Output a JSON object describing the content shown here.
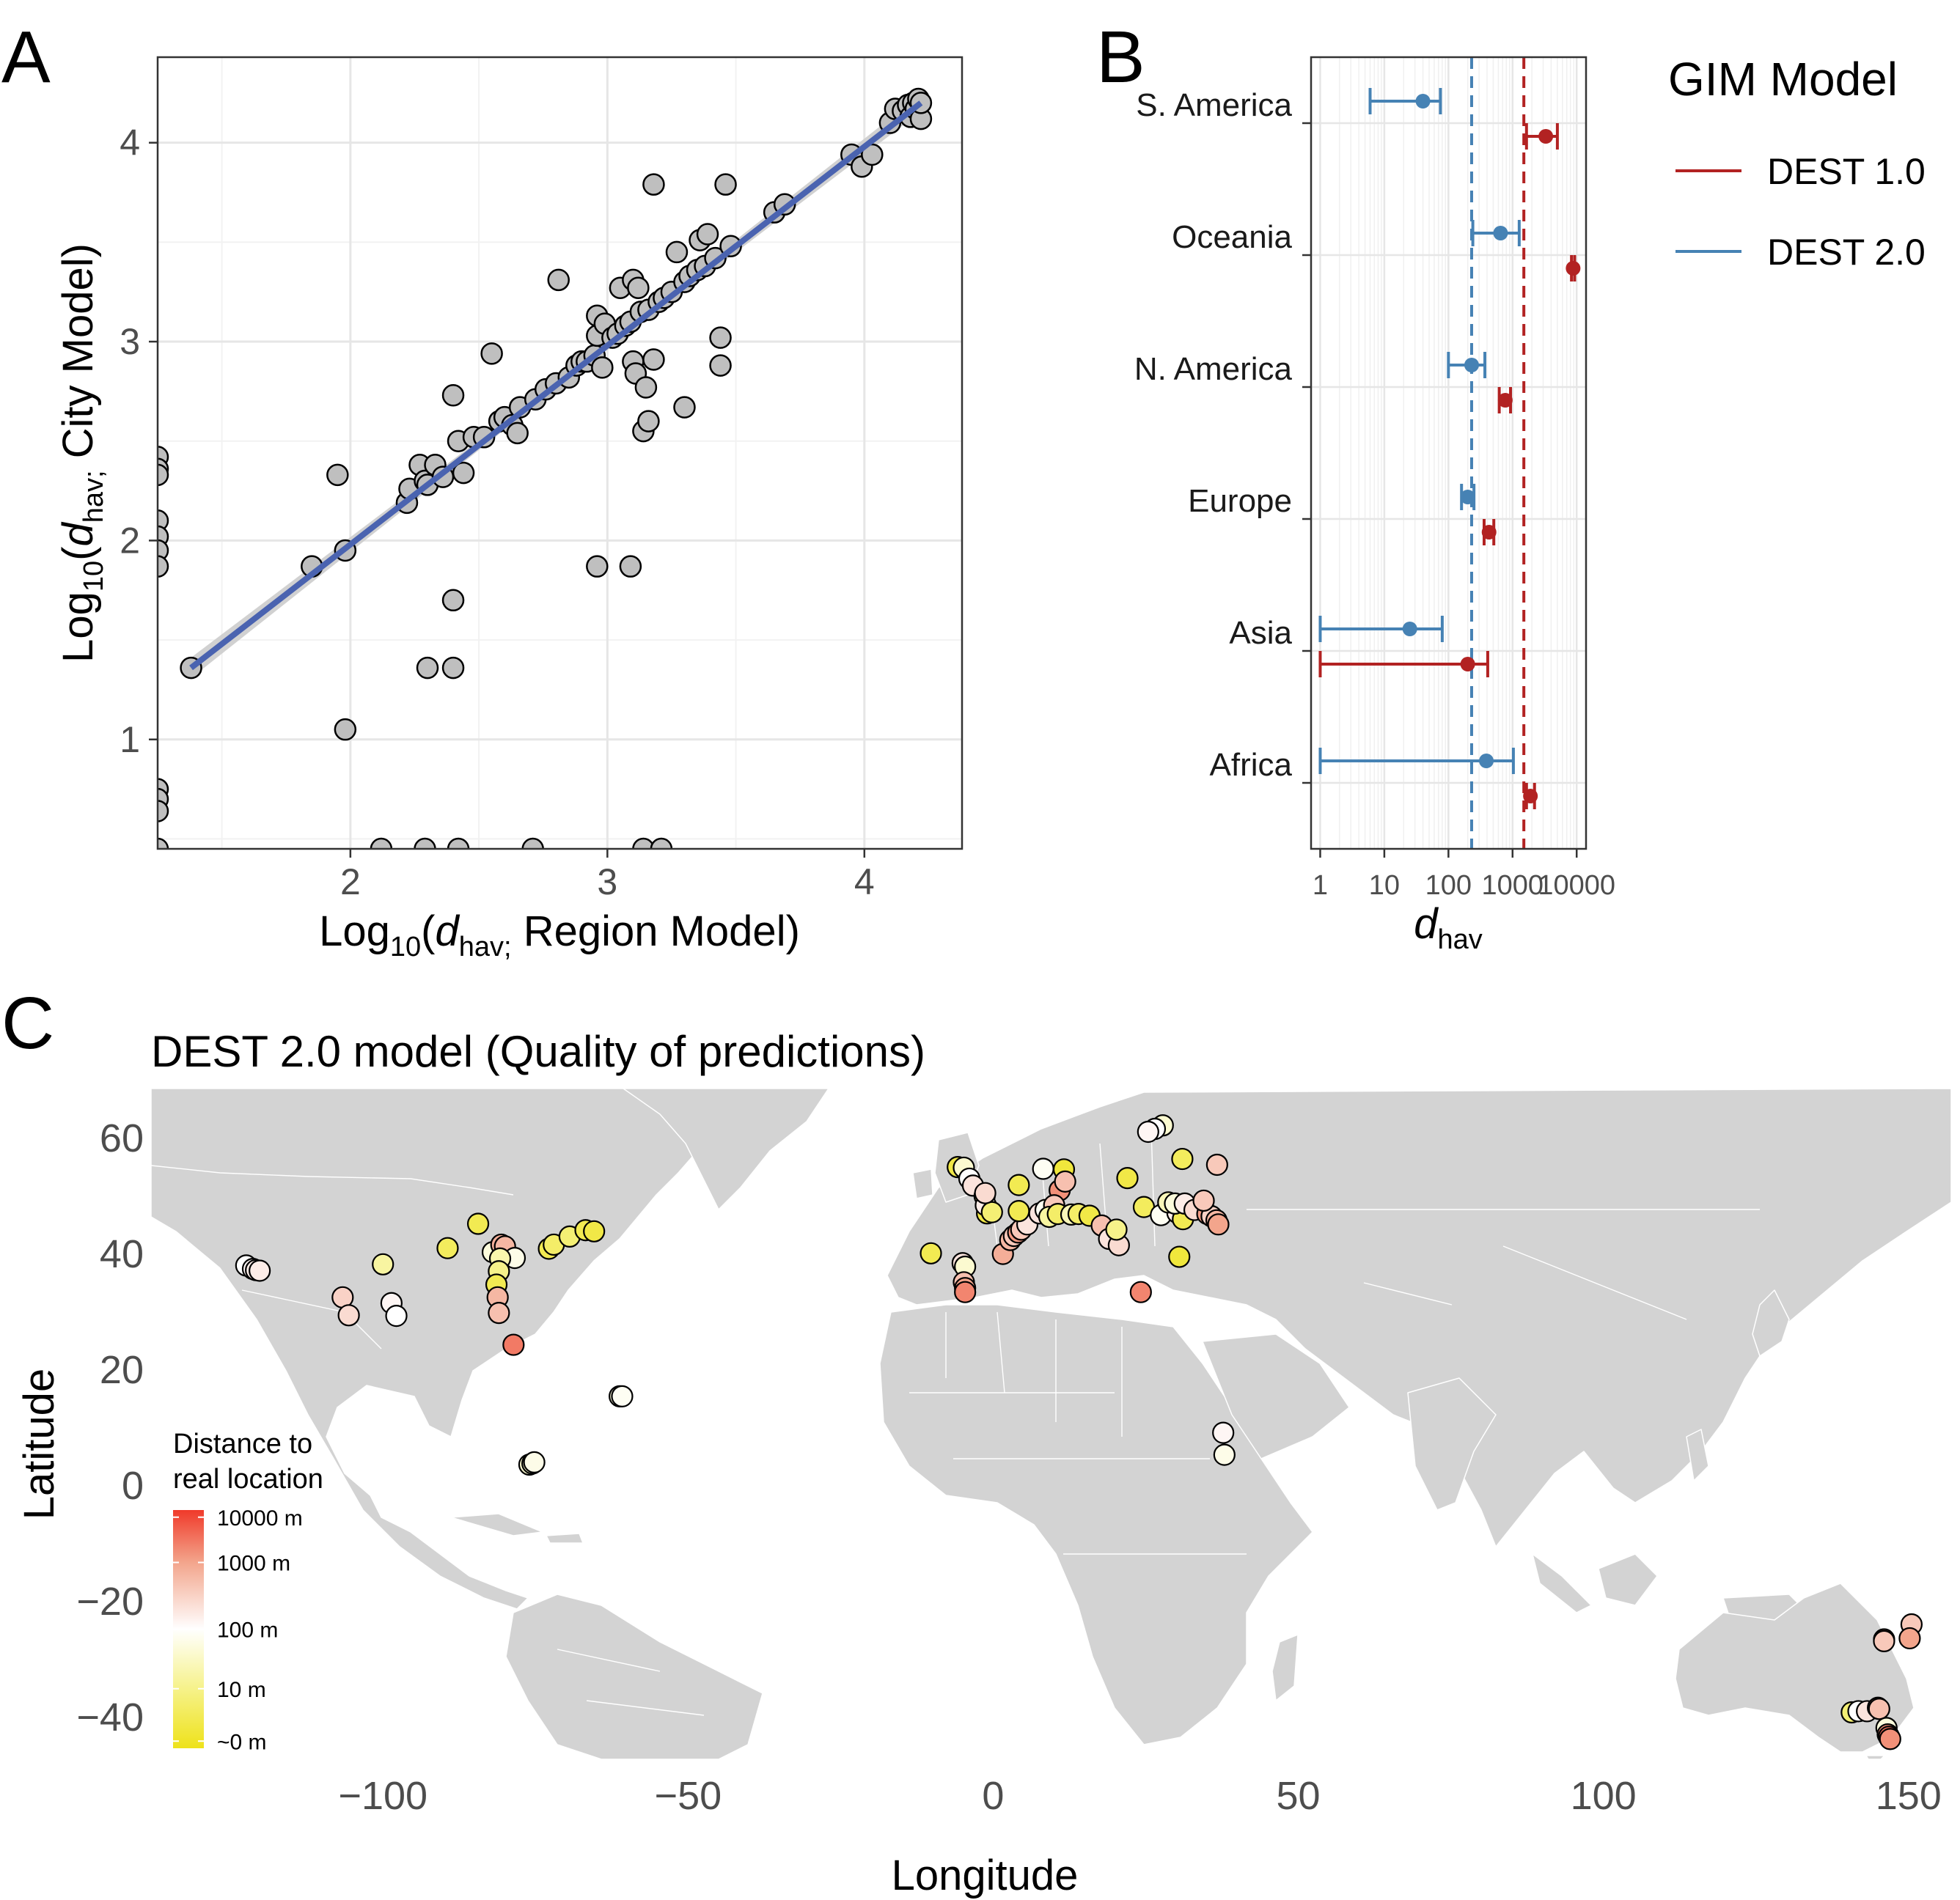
{
  "panels": {
    "A": {
      "letter": "A"
    },
    "B": {
      "letter": "B"
    },
    "C": {
      "letter": "C"
    }
  },
  "chart_data": [
    {
      "id": "A",
      "type": "scatter",
      "xlabel": {
        "prefix": "Log",
        "sub": "10",
        "open": "(",
        "var": "d",
        "varsub": "hav;",
        "rest": " Region Model)"
      },
      "ylabel": {
        "prefix": "Log",
        "sub": "10",
        "open": "(",
        "var": "d",
        "varsub": "hav;",
        "rest": " City Model)"
      },
      "xlim": [
        1.25,
        4.38
      ],
      "ylim": [
        0.45,
        4.43
      ],
      "xticks": [
        2,
        3,
        4
      ],
      "yticks": [
        1,
        2,
        3,
        4
      ],
      "grid": true,
      "colors": {
        "points": "#bfbfbf",
        "point_edge": "#000000",
        "fit_line": "#4a63b0",
        "fit_band": "#cccccc"
      },
      "fit": {
        "x": [
          1.38,
          4.22
        ],
        "y": [
          1.36,
          4.2
        ]
      },
      "points": [
        [
          1.25,
          2.42
        ],
        [
          1.25,
          2.36
        ],
        [
          1.25,
          2.33
        ],
        [
          1.25,
          2.1
        ],
        [
          1.25,
          2.02
        ],
        [
          1.25,
          1.95
        ],
        [
          1.25,
          1.87
        ],
        [
          1.25,
          0.75
        ],
        [
          1.25,
          0.7
        ],
        [
          1.25,
          0.64
        ],
        [
          1.25,
          0.45
        ],
        [
          1.38,
          1.36
        ],
        [
          1.85,
          1.87
        ],
        [
          1.95,
          2.33
        ],
        [
          1.98,
          1.95
        ],
        [
          1.98,
          1.05
        ],
        [
          2.12,
          0.45
        ],
        [
          2.22,
          2.19
        ],
        [
          2.23,
          2.26
        ],
        [
          2.27,
          2.38
        ],
        [
          2.29,
          2.3
        ],
        [
          2.3,
          2.28
        ],
        [
          2.3,
          1.36
        ],
        [
          2.29,
          0.45
        ],
        [
          2.33,
          2.38
        ],
        [
          2.36,
          2.32
        ],
        [
          2.4,
          2.73
        ],
        [
          2.4,
          1.7
        ],
        [
          2.4,
          1.36
        ],
        [
          2.42,
          2.5
        ],
        [
          2.42,
          0.45
        ],
        [
          2.44,
          2.34
        ],
        [
          2.48,
          2.52
        ],
        [
          2.52,
          2.52
        ],
        [
          2.55,
          2.94
        ],
        [
          2.58,
          2.6
        ],
        [
          2.6,
          2.62
        ],
        [
          2.63,
          2.58
        ],
        [
          2.65,
          2.54
        ],
        [
          2.66,
          2.67
        ],
        [
          2.71,
          0.45
        ],
        [
          2.72,
          2.71
        ],
        [
          2.76,
          2.76
        ],
        [
          2.8,
          2.79
        ],
        [
          2.81,
          3.31
        ],
        [
          2.85,
          2.82
        ],
        [
          2.88,
          2.88
        ],
        [
          2.9,
          2.9
        ],
        [
          2.92,
          2.9
        ],
        [
          2.95,
          2.93
        ],
        [
          2.96,
          3.13
        ],
        [
          2.96,
          3.03
        ],
        [
          2.96,
          1.87
        ],
        [
          2.98,
          2.87
        ],
        [
          2.99,
          3.09
        ],
        [
          3.02,
          3.02
        ],
        [
          3.04,
          3.04
        ],
        [
          3.05,
          3.27
        ],
        [
          3.07,
          3.08
        ],
        [
          3.09,
          3.1
        ],
        [
          3.09,
          1.87
        ],
        [
          3.1,
          3.31
        ],
        [
          3.1,
          2.9
        ],
        [
          3.11,
          2.84
        ],
        [
          3.12,
          3.27
        ],
        [
          3.13,
          3.15
        ],
        [
          3.14,
          2.55
        ],
        [
          3.14,
          0.45
        ],
        [
          3.15,
          2.77
        ],
        [
          3.16,
          2.6
        ],
        [
          3.16,
          3.16
        ],
        [
          3.18,
          3.79
        ],
        [
          3.18,
          2.91
        ],
        [
          3.2,
          3.2
        ],
        [
          3.21,
          0.45
        ],
        [
          3.22,
          3.22
        ],
        [
          3.25,
          3.25
        ],
        [
          3.27,
          3.45
        ],
        [
          3.3,
          3.3
        ],
        [
          3.3,
          2.67
        ],
        [
          3.32,
          3.33
        ],
        [
          3.35,
          3.36
        ],
        [
          3.36,
          3.51
        ],
        [
          3.38,
          3.38
        ],
        [
          3.39,
          3.54
        ],
        [
          3.42,
          3.42
        ],
        [
          3.44,
          3.02
        ],
        [
          3.44,
          2.88
        ],
        [
          3.46,
          3.79
        ],
        [
          3.48,
          3.48
        ],
        [
          3.65,
          3.65
        ],
        [
          3.69,
          3.69
        ],
        [
          3.95,
          3.94
        ],
        [
          3.99,
          3.88
        ],
        [
          4.03,
          3.94
        ],
        [
          4.1,
          4.1
        ],
        [
          4.12,
          4.17
        ],
        [
          4.15,
          4.16
        ],
        [
          4.17,
          4.19
        ],
        [
          4.18,
          4.13
        ],
        [
          4.19,
          4.2
        ],
        [
          4.2,
          4.17
        ],
        [
          4.21,
          4.22
        ],
        [
          4.22,
          4.12
        ],
        [
          4.22,
          4.2
        ]
      ]
    },
    {
      "id": "B",
      "type": "errorbar",
      "xlabel": {
        "var": "d",
        "sub": "hav"
      },
      "xscale": "log10",
      "xlim": [
        0.72,
        14000
      ],
      "xticks": [
        {
          "v": 1,
          "label": "1"
        },
        {
          "v": 10,
          "label": "10"
        },
        {
          "v": 100,
          "label": "100"
        },
        {
          "v": 1000,
          "label": "1000"
        },
        {
          "v": 10000,
          "label": "10000"
        }
      ],
      "categories": [
        "S. America",
        "Oceania",
        "N. America",
        "Europe",
        "Asia",
        "Africa"
      ],
      "grid": true,
      "reference_lines": [
        {
          "series": "DEST 2.0",
          "x": 230,
          "style": "dashed"
        },
        {
          "series": "DEST 1.0",
          "x": 1500,
          "style": "dashed"
        }
      ],
      "legend": {
        "title": "GIM Model",
        "placement": "right"
      },
      "series": [
        {
          "name": "DEST 1.0",
          "color": "#b22222",
          "points": [
            {
              "category": "S. America",
              "x": 3300,
              "lo": 1650,
              "hi": 5000
            },
            {
              "category": "Oceania",
              "x": 8800,
              "lo": 8300,
              "hi": 9300
            },
            {
              "category": "N. America",
              "x": 770,
              "lo": 620,
              "hi": 930
            },
            {
              "category": "Europe",
              "x": 430,
              "lo": 360,
              "hi": 510
            },
            {
              "category": "Asia",
              "x": 200,
              "lo": 1,
              "hi": 410
            },
            {
              "category": "Africa",
              "x": 1900,
              "lo": 1650,
              "hi": 2200
            }
          ]
        },
        {
          "name": "DEST 2.0",
          "color": "#4682b4",
          "points": [
            {
              "category": "S. America",
              "x": 40,
              "lo": 6,
              "hi": 75
            },
            {
              "category": "Oceania",
              "x": 650,
              "lo": 240,
              "hi": 1270
            },
            {
              "category": "N. America",
              "x": 230,
              "lo": 100,
              "hi": 370
            },
            {
              "category": "Europe",
              "x": 200,
              "lo": 160,
              "hi": 250
            },
            {
              "category": "Asia",
              "x": 25,
              "lo": 1,
              "hi": 80
            },
            {
              "category": "Africa",
              "x": 390,
              "lo": 1,
              "hi": 1030
            }
          ]
        }
      ]
    },
    {
      "id": "C",
      "type": "map-scatter",
      "title": "DEST 2.0 model (Quality of predictions)",
      "xlabel": "Longitude",
      "ylabel": "Latitude",
      "xlim": [
        -138,
        157
      ],
      "ylim": [
        -47.5,
        69
      ],
      "xticks": [
        {
          "v": -100,
          "label": "−100"
        },
        {
          "v": -50,
          "label": "−50"
        },
        {
          "v": 0,
          "label": "0"
        },
        {
          "v": 50,
          "label": "50"
        },
        {
          "v": 100,
          "label": "100"
        },
        {
          "v": 150,
          "label": "150"
        }
      ],
      "yticks": [
        {
          "v": 60,
          "label": "60"
        },
        {
          "v": 40,
          "label": "40"
        },
        {
          "v": 20,
          "label": "20"
        },
        {
          "v": 0,
          "label": "0"
        },
        {
          "v": -20,
          "label": "−20"
        },
        {
          "v": -40,
          "label": "−40"
        }
      ],
      "colors": {
        "land": "#d3d3d3",
        "border": "#ffffff",
        "point_edge": "#000000"
      },
      "colorbar": {
        "title": [
          "Distance to",
          "real location"
        ],
        "labels": [
          "10000 m",
          "1000 m",
          "100 m",
          "10 m",
          "~0 m"
        ],
        "stops": [
          "#f03a2a",
          "#f3a58c",
          "#ffffff",
          "#f6f28a",
          "#eee21a"
        ]
      },
      "points": [
        [
          -122.4,
          37.8,
          2.0
        ],
        [
          -121.3,
          37.2,
          2.1
        ],
        [
          -120.8,
          37.0,
          2.2
        ],
        [
          -120.2,
          36.9,
          2.2
        ],
        [
          -106.6,
          32.3,
          2.5
        ],
        [
          -105.6,
          29.2,
          2.4
        ],
        [
          -98.6,
          31.3,
          2.1
        ],
        [
          -97.8,
          29.1,
          2.0
        ],
        [
          -100.0,
          38.0,
          1.2
        ],
        [
          -89.4,
          40.8,
          0.6
        ],
        [
          -84.4,
          45.0,
          0.5
        ],
        [
          -82.0,
          40.1,
          1.7
        ],
        [
          -80.6,
          41.4,
          2.9
        ],
        [
          -80.0,
          41.1,
          2.8
        ],
        [
          -78.4,
          39.1,
          1.8
        ],
        [
          -80.8,
          39.0,
          1.3
        ],
        [
          -81.0,
          36.8,
          1.0
        ],
        [
          -81.4,
          34.5,
          0.5
        ],
        [
          -81.2,
          32.3,
          2.8
        ],
        [
          -81.0,
          29.6,
          2.7
        ],
        [
          -78.6,
          24.1,
          3.4
        ],
        [
          -72.8,
          40.7,
          0.5
        ],
        [
          -72.0,
          41.4,
          0.7
        ],
        [
          -69.4,
          42.8,
          0.8
        ],
        [
          -66.8,
          43.9,
          0.5
        ],
        [
          -65.4,
          43.7,
          0.4
        ],
        [
          -61.2,
          15.2,
          1.7
        ],
        [
          -60.8,
          15.2,
          1.9
        ],
        [
          -76.0,
          3.4,
          1.6
        ],
        [
          -75.5,
          3.6,
          1.6
        ],
        [
          -75.2,
          3.8,
          1.8
        ],
        [
          -10.2,
          39.9,
          0.5
        ],
        [
          -5.0,
          38.2,
          2.3
        ],
        [
          -4.6,
          37.6,
          1.6
        ],
        [
          -4.8,
          34.9,
          2.7
        ],
        [
          -4.6,
          33.9,
          3.0
        ],
        [
          -4.6,
          33.2,
          3.3
        ],
        [
          -5.8,
          54.8,
          0.4
        ],
        [
          -4.8,
          54.7,
          1.6
        ],
        [
          -3.9,
          52.8,
          2.0
        ],
        [
          -3.3,
          51.6,
          2.3
        ],
        [
          -1.0,
          46.8,
          0.4
        ],
        [
          -1.4,
          49.8,
          1.0
        ],
        [
          -1.2,
          48.2,
          2.2
        ],
        [
          -0.2,
          47.0,
          0.8
        ],
        [
          -1.3,
          50.3,
          2.4
        ],
        [
          1.6,
          39.8,
          2.9
        ],
        [
          2.8,
          42.2,
          2.8
        ],
        [
          3.4,
          42.9,
          2.6
        ],
        [
          4.1,
          43.5,
          3.1
        ],
        [
          4.6,
          44.0,
          2.6
        ],
        [
          5.6,
          44.9,
          2.3
        ],
        [
          4.2,
          47.2,
          0.5
        ],
        [
          4.2,
          51.7,
          0.5
        ],
        [
          8.2,
          54.5,
          1.9
        ],
        [
          11.6,
          54.4,
          0.3
        ],
        [
          10.9,
          50.8,
          3.2
        ],
        [
          11.8,
          52.3,
          2.7
        ],
        [
          7.6,
          46.8,
          2.3
        ],
        [
          8.6,
          47.4,
          1.9
        ],
        [
          10.0,
          48.2,
          2.6
        ],
        [
          9.2,
          46.2,
          1.2
        ],
        [
          10.6,
          46.7,
          0.7
        ],
        [
          12.8,
          46.6,
          1.4
        ],
        [
          14.0,
          46.7,
          0.7
        ],
        [
          15.8,
          46.4,
          0.4
        ],
        [
          17.8,
          44.7,
          2.7
        ],
        [
          19.0,
          42.4,
          2.3
        ],
        [
          20.6,
          41.3,
          2.4
        ],
        [
          20.2,
          44.0,
          1.0
        ],
        [
          24.7,
          47.9,
          0.6
        ],
        [
          22.0,
          52.9,
          0.4
        ],
        [
          28.4,
          47.3,
          1.6
        ],
        [
          27.5,
          46.5,
          1.9
        ],
        [
          30.2,
          46.9,
          2.2
        ],
        [
          31.1,
          45.8,
          0.5
        ],
        [
          30.5,
          39.3,
          0.3
        ],
        [
          28.7,
          48.7,
          1.4
        ],
        [
          29.8,
          48.5,
          1.7
        ],
        [
          31.4,
          48.5,
          2.2
        ],
        [
          33.0,
          47.4,
          2.4
        ],
        [
          35.1,
          46.7,
          3.1
        ],
        [
          35.8,
          46.3,
          2.5
        ],
        [
          36.6,
          45.6,
          2.8
        ],
        [
          36.9,
          44.9,
          3.0
        ],
        [
          34.5,
          49.0,
          2.6
        ],
        [
          36.7,
          55.2,
          2.6
        ],
        [
          31.0,
          56.2,
          0.6
        ],
        [
          27.8,
          62.0,
          1.6
        ],
        [
          26.5,
          61.4,
          2.0
        ],
        [
          25.4,
          60.9,
          2.1
        ],
        [
          24.2,
          33.2,
          3.3
        ],
        [
          37.7,
          8.9,
          2.1
        ],
        [
          37.9,
          5.1,
          1.8
        ],
        [
          146.0,
          -26.8,
          2.9
        ],
        [
          146.0,
          -27.1,
          2.6
        ],
        [
          150.5,
          -24.2,
          2.6
        ],
        [
          150.2,
          -26.6,
          3.0
        ],
        [
          140.7,
          -39.4,
          0.8
        ],
        [
          141.8,
          -39.2,
          2.0
        ],
        [
          143.2,
          -39.2,
          2.3
        ],
        [
          145.0,
          -38.6,
          3.1
        ],
        [
          145.2,
          -38.8,
          2.7
        ],
        [
          146.4,
          -42.1,
          1.7
        ],
        [
          146.6,
          -43.2,
          3.2
        ],
        [
          146.8,
          -43.6,
          3.5
        ],
        [
          147.0,
          -44.0,
          3.2
        ]
      ]
    }
  ]
}
